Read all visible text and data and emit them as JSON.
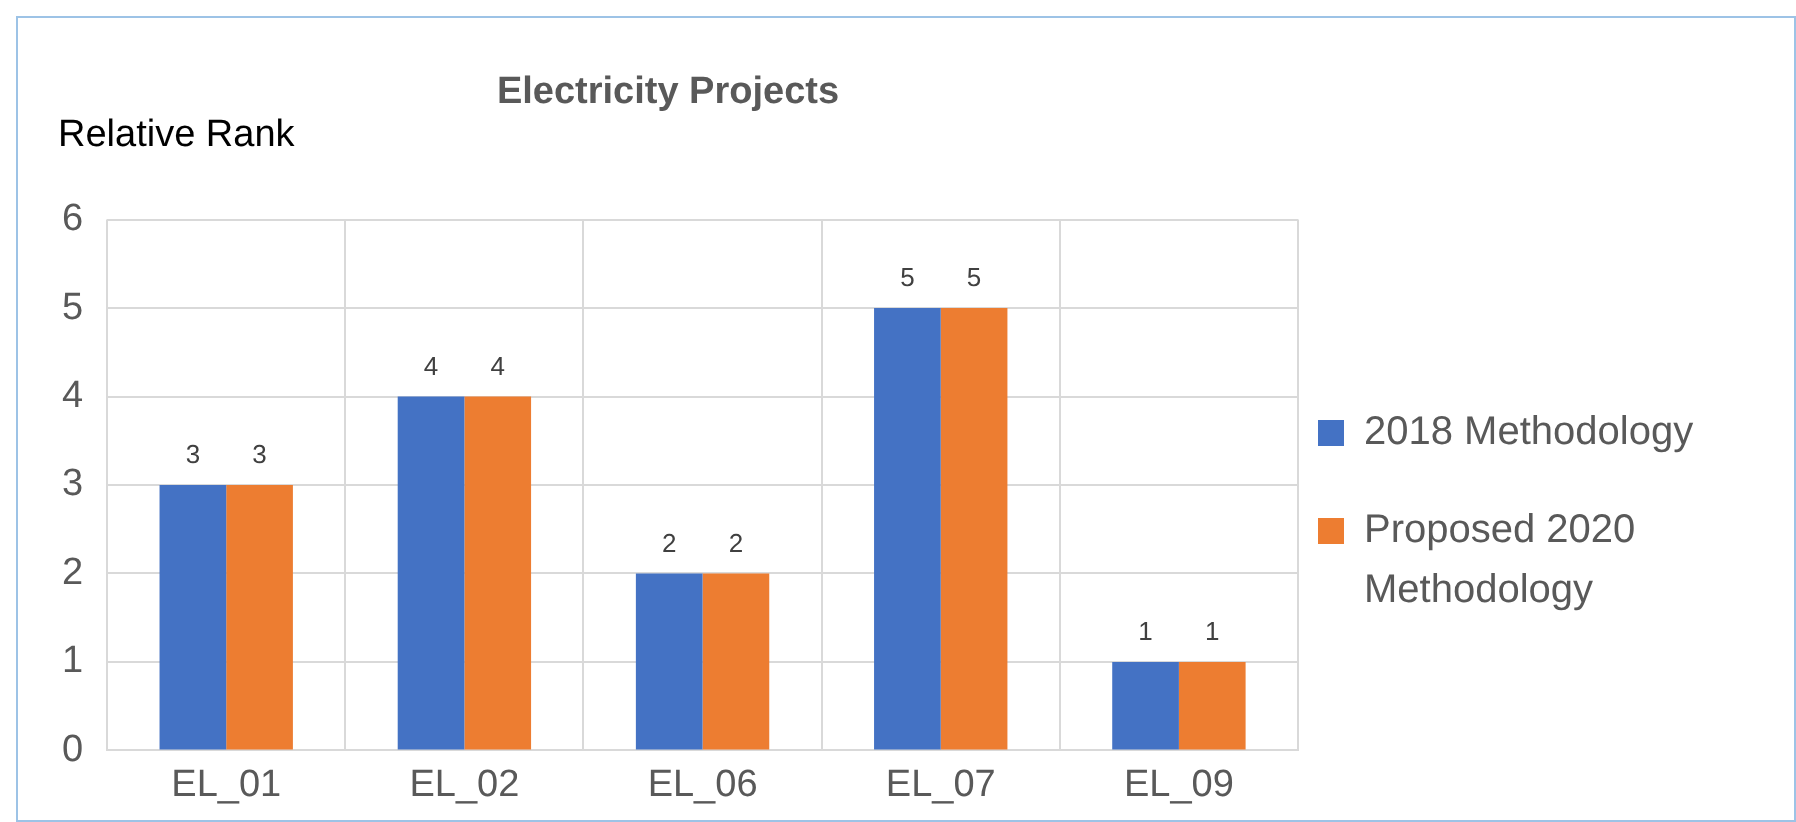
{
  "chart_data": {
    "type": "bar",
    "title": "Electricity Projects",
    "ylabel": "Relative Rank",
    "categories": [
      "EL_01",
      "EL_02",
      "EL_06",
      "EL_07",
      "EL_09"
    ],
    "series": [
      {
        "name": "2018 Methodology",
        "color": "#4472c4",
        "values": [
          3,
          4,
          2,
          5,
          1
        ]
      },
      {
        "name": "Proposed 2020 Methodology",
        "color": "#ed7d31",
        "values": [
          3,
          4,
          2,
          5,
          1
        ]
      }
    ],
    "ylim": [
      0,
      6
    ],
    "yticks": [
      0,
      1,
      2,
      3,
      4,
      5,
      6
    ],
    "grid": true,
    "legend": "right",
    "data_labels": true
  }
}
